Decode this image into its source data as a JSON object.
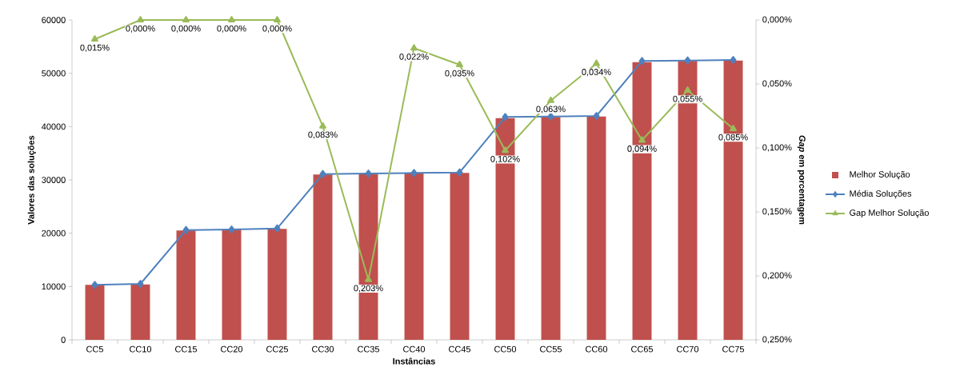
{
  "chart_data": {
    "type": "bar",
    "xlabel": "Instâncias",
    "ylabel": "Valores das soluções",
    "y2label": "*Gap* em porcentagem",
    "categories": [
      "CC5",
      "CC10",
      "CC15",
      "CC20",
      "CC25",
      "CC30",
      "CC35",
      "CC40",
      "CC45",
      "CC50",
      "CC55",
      "CC60",
      "CC65",
      "CC70",
      "CC75"
    ],
    "series": [
      {
        "name": "Melhor Solução",
        "color": "#c0504d",
        "values": [
          10300,
          10400,
          20500,
          20700,
          20800,
          31000,
          31100,
          31200,
          31300,
          41600,
          41800,
          41900,
          52100,
          52300,
          52400
        ]
      },
      {
        "name": "Média Soluções",
        "type": "line",
        "color": "#4f81bd",
        "marker": "diamond",
        "values": [
          10300,
          10500,
          20600,
          20700,
          20900,
          31100,
          31200,
          31300,
          31400,
          41800,
          41900,
          42000,
          52300,
          52400,
          52500
        ]
      },
      {
        "name": "Gap Melhor Solução",
        "type": "line",
        "axis": "y2",
        "color": "#9bbb59",
        "marker": "triangle",
        "values": [
          0.015,
          0,
          0,
          0,
          0,
          0.083,
          0.203,
          0.022,
          0.035,
          0.102,
          0.063,
          0.034,
          0.094,
          0.055,
          0.085
        ],
        "value_labels": [
          "0,015%",
          "0,000%",
          "0,000%",
          "0,000%",
          "0,000%",
          "0,083%",
          "0,203%",
          "0,022%",
          "0,035%",
          "0,102%",
          "0,063%",
          "0,034%",
          "0,094%",
          "0,055%",
          "0,085%"
        ]
      }
    ],
    "ylim": [
      0,
      60000
    ],
    "yticks": [
      0,
      10000,
      20000,
      30000,
      40000,
      50000,
      60000
    ],
    "y2lim": [
      0.25,
      0
    ],
    "y2ticks": [
      {
        "value": 0,
        "label": "0,000%"
      },
      {
        "value": 0.05,
        "label": "0,050%"
      },
      {
        "value": 0.1,
        "label": "0,100%"
      },
      {
        "value": 0.15,
        "label": "0,150%"
      },
      {
        "value": 0.2,
        "label": "0,200%"
      },
      {
        "value": 0.25,
        "label": "0,250%"
      }
    ],
    "grid": false,
    "legend": "right"
  }
}
